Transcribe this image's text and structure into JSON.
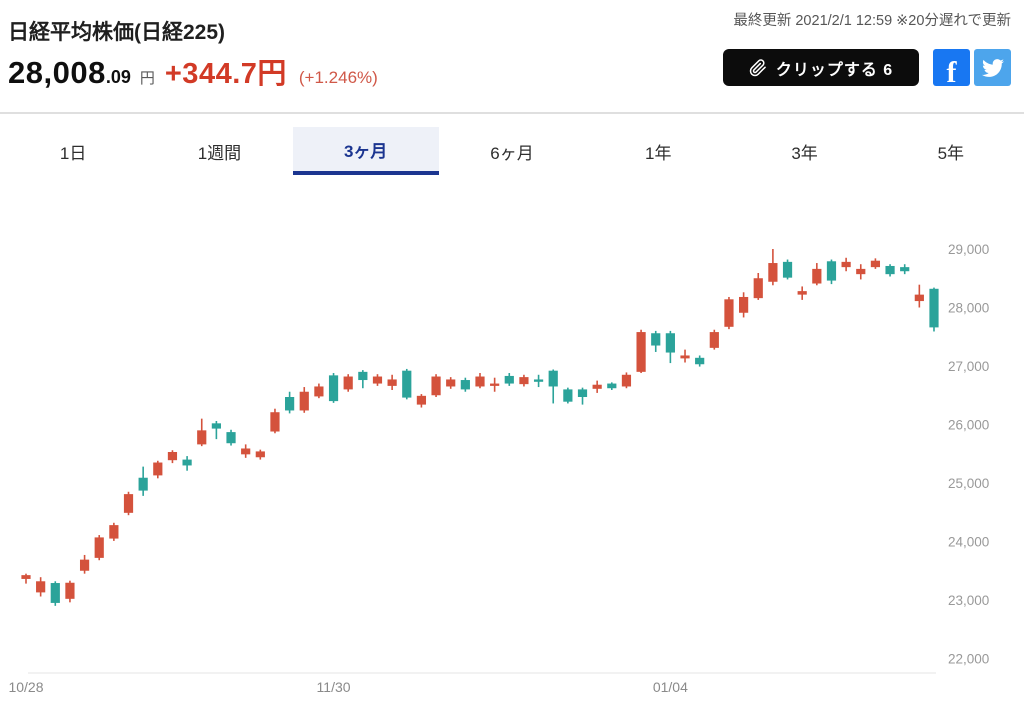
{
  "header": {
    "title": "日経平均株価(日経225)",
    "price_int": "28,008",
    "price_dec": ".09",
    "currency": "円",
    "change": "+344.7円",
    "change_pct": "(+1.246%)",
    "last_update": "最終更新 2021/2/1 12:59 ※20分遅れで更新",
    "clip_button_label": "クリップする 6"
  },
  "tabs": [
    {
      "label": "1日",
      "selected": false
    },
    {
      "label": "1週間",
      "selected": false
    },
    {
      "label": "3ヶ月",
      "selected": true
    },
    {
      "label": "6ヶ月",
      "selected": false
    },
    {
      "label": "1年",
      "selected": false
    },
    {
      "label": "3年",
      "selected": false
    },
    {
      "label": "5年",
      "selected": false
    }
  ],
  "colors": {
    "candle_up": "#d4523c",
    "candle_down": "#2ba39a",
    "accent_navy": "#1b3590",
    "change_red": "#d23a26",
    "axis_text": "#999999",
    "axis_line": "#e4e4e4",
    "facebook_blue": "#1877f2",
    "twitter_blue": "#4da5ec"
  },
  "chart_data": {
    "type": "candlestick",
    "title": "Nikkei 225, 3-month daily candles",
    "ylim": [
      22000,
      29000
    ],
    "grid": false,
    "y_ticks": [
      {
        "value": 29000,
        "label": "29,000"
      },
      {
        "value": 28000,
        "label": "28,000"
      },
      {
        "value": 27000,
        "label": "27,000"
      },
      {
        "value": 26000,
        "label": "26,000"
      },
      {
        "value": 25000,
        "label": "25,000"
      },
      {
        "value": 24000,
        "label": "24,000"
      },
      {
        "value": 23000,
        "label": "23,000"
      },
      {
        "value": 22000,
        "label": "22,000"
      }
    ],
    "x_ticks": [
      {
        "index": 0,
        "label": "10/28"
      },
      {
        "index": 21,
        "label": "11/30"
      },
      {
        "index": 44,
        "label": "01/04"
      }
    ],
    "candles_format": [
      "open",
      "high",
      "low",
      "close"
    ],
    "candles": [
      [
        23360,
        23450,
        23280,
        23425
      ],
      [
        23130,
        23390,
        23060,
        23320
      ],
      [
        23290,
        23320,
        22900,
        22950
      ],
      [
        23020,
        23330,
        22960,
        23295
      ],
      [
        23500,
        23770,
        23450,
        23690
      ],
      [
        23720,
        24110,
        23680,
        24070
      ],
      [
        24050,
        24320,
        24010,
        24280
      ],
      [
        24490,
        24850,
        24450,
        24810
      ],
      [
        25090,
        25280,
        24780,
        24870
      ],
      [
        25130,
        25380,
        25080,
        25350
      ],
      [
        25390,
        25560,
        25340,
        25530
      ],
      [
        25400,
        25460,
        25210,
        25300
      ],
      [
        25660,
        26100,
        25630,
        25900
      ],
      [
        26020,
        26060,
        25750,
        25930
      ],
      [
        25870,
        25910,
        25640,
        25680
      ],
      [
        25490,
        25660,
        25430,
        25590
      ],
      [
        25440,
        25570,
        25400,
        25540
      ],
      [
        25880,
        26270,
        25850,
        26210
      ],
      [
        26470,
        26560,
        26190,
        26240
      ],
      [
        26240,
        26640,
        26200,
        26560
      ],
      [
        26480,
        26700,
        26450,
        26650
      ],
      [
        26840,
        26880,
        26370,
        26400
      ],
      [
        26600,
        26860,
        26560,
        26820
      ],
      [
        26900,
        26930,
        26620,
        26760
      ],
      [
        26700,
        26860,
        26660,
        26820
      ],
      [
        26660,
        26850,
        26590,
        26770
      ],
      [
        26920,
        26950,
        26430,
        26460
      ],
      [
        26340,
        26520,
        26290,
        26490
      ],
      [
        26500,
        26860,
        26470,
        26820
      ],
      [
        26650,
        26810,
        26610,
        26770
      ],
      [
        26760,
        26800,
        26560,
        26600
      ],
      [
        26650,
        26880,
        26620,
        26820
      ],
      [
        26660,
        26800,
        26560,
        26700
      ],
      [
        26830,
        26880,
        26660,
        26700
      ],
      [
        26690,
        26850,
        26650,
        26810
      ],
      [
        26770,
        26850,
        26640,
        26730
      ],
      [
        26920,
        26940,
        26360,
        26650
      ],
      [
        26600,
        26630,
        26360,
        26390
      ],
      [
        26600,
        26630,
        26340,
        26470
      ],
      [
        26610,
        26750,
        26540,
        26680
      ],
      [
        26700,
        26720,
        26590,
        26620
      ],
      [
        26650,
        26890,
        26620,
        26850
      ],
      [
        26900,
        27620,
        26880,
        27580
      ],
      [
        27560,
        27600,
        27240,
        27350
      ],
      [
        27560,
        27600,
        27050,
        27230
      ],
      [
        27130,
        27280,
        27060,
        27180
      ],
      [
        27140,
        27180,
        26990,
        27030
      ],
      [
        27310,
        27620,
        27280,
        27580
      ],
      [
        27670,
        28180,
        27630,
        28140
      ],
      [
        27910,
        28260,
        27830,
        28180
      ],
      [
        28160,
        28590,
        28130,
        28500
      ],
      [
        28440,
        29000,
        28380,
        28760
      ],
      [
        28780,
        28820,
        28480,
        28510
      ],
      [
        28220,
        28360,
        28130,
        28280
      ],
      [
        28410,
        28760,
        28380,
        28660
      ],
      [
        28790,
        28820,
        28400,
        28460
      ],
      [
        28690,
        28850,
        28620,
        28780
      ],
      [
        28570,
        28740,
        28480,
        28660
      ],
      [
        28690,
        28840,
        28660,
        28800
      ],
      [
        28710,
        28740,
        28530,
        28570
      ],
      [
        28690,
        28740,
        28570,
        28620
      ],
      [
        28110,
        28390,
        28000,
        28220
      ],
      [
        28320,
        28340,
        27590,
        27660
      ]
    ]
  }
}
